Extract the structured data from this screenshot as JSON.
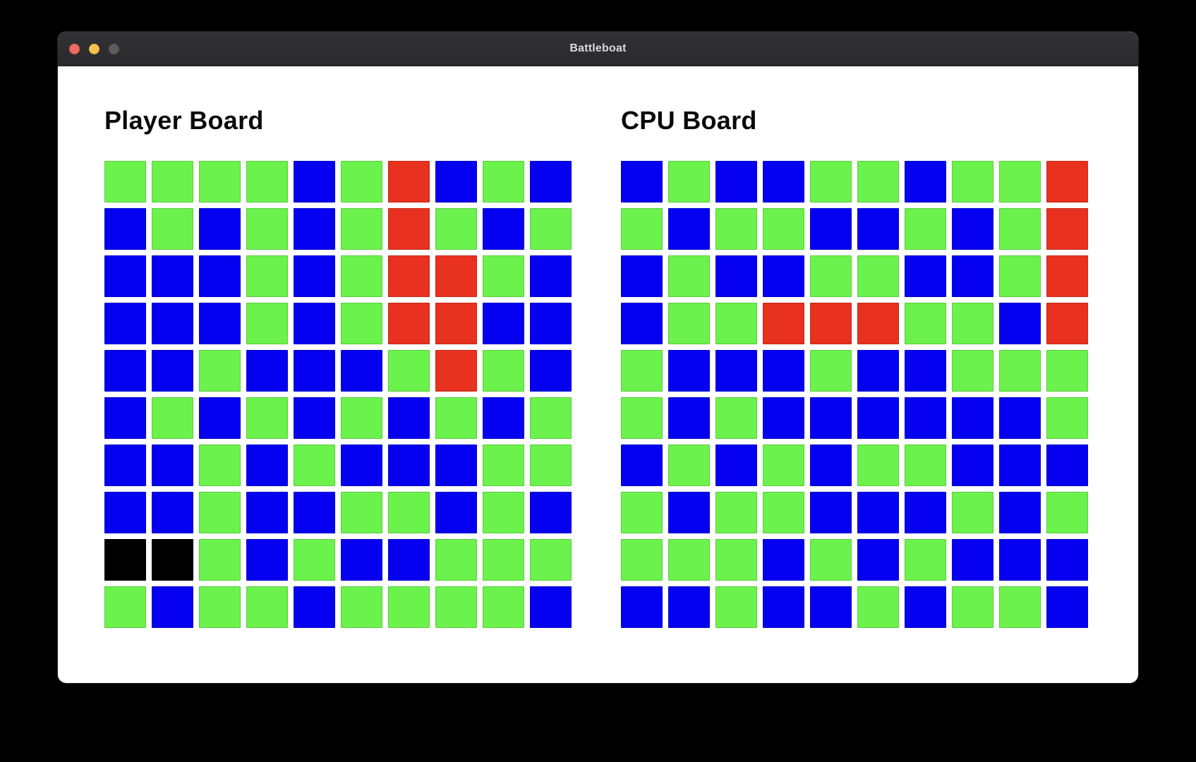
{
  "window": {
    "title": "Battleboat",
    "traffic_lights": [
      {
        "name": "close-button",
        "color": "#ed6a5f",
        "interactable": true
      },
      {
        "name": "minimize-button",
        "color": "#f5bf4f",
        "interactable": true
      },
      {
        "name": "zoom-button",
        "color": "#5d5d60",
        "interactable": true
      }
    ]
  },
  "colors": {
    "G": "#6cf24c",
    "B": "#0500f0",
    "R": "#e8311f",
    "K": "#000000"
  },
  "color_meanings": {
    "G": "green-cell",
    "B": "blue-cell",
    "R": "red-cell",
    "K": "black-cell"
  },
  "boards": [
    {
      "id": "player-board",
      "title": "Player Board",
      "cells_interactable": false,
      "rows": [
        [
          "G",
          "G",
          "G",
          "G",
          "B",
          "G",
          "R",
          "B",
          "G",
          "B"
        ],
        [
          "B",
          "G",
          "B",
          "G",
          "B",
          "G",
          "R",
          "G",
          "B",
          "G"
        ],
        [
          "B",
          "B",
          "B",
          "G",
          "B",
          "G",
          "R",
          "R",
          "G",
          "B"
        ],
        [
          "B",
          "B",
          "B",
          "G",
          "B",
          "G",
          "R",
          "R",
          "B",
          "B"
        ],
        [
          "B",
          "B",
          "G",
          "B",
          "B",
          "B",
          "G",
          "R",
          "G",
          "B"
        ],
        [
          "B",
          "G",
          "B",
          "G",
          "B",
          "G",
          "B",
          "G",
          "B",
          "G"
        ],
        [
          "B",
          "B",
          "G",
          "B",
          "G",
          "B",
          "B",
          "B",
          "G",
          "G"
        ],
        [
          "B",
          "B",
          "G",
          "B",
          "B",
          "G",
          "G",
          "B",
          "G",
          "B"
        ],
        [
          "K",
          "K",
          "G",
          "B",
          "G",
          "B",
          "B",
          "G",
          "G",
          "G"
        ],
        [
          "G",
          "B",
          "G",
          "G",
          "B",
          "G",
          "G",
          "G",
          "G",
          "B"
        ]
      ]
    },
    {
      "id": "cpu-board",
      "title": "CPU Board",
      "cells_interactable": true,
      "rows": [
        [
          "B",
          "G",
          "B",
          "B",
          "G",
          "G",
          "B",
          "G",
          "G",
          "R"
        ],
        [
          "G",
          "B",
          "G",
          "G",
          "B",
          "B",
          "G",
          "B",
          "G",
          "R"
        ],
        [
          "B",
          "G",
          "B",
          "B",
          "G",
          "G",
          "B",
          "B",
          "G",
          "R"
        ],
        [
          "B",
          "G",
          "G",
          "R",
          "R",
          "R",
          "G",
          "G",
          "B",
          "R"
        ],
        [
          "G",
          "B",
          "B",
          "B",
          "G",
          "B",
          "B",
          "G",
          "G",
          "G"
        ],
        [
          "G",
          "B",
          "G",
          "B",
          "B",
          "B",
          "B",
          "B",
          "B",
          "G"
        ],
        [
          "B",
          "G",
          "B",
          "G",
          "B",
          "G",
          "G",
          "B",
          "B",
          "B"
        ],
        [
          "G",
          "B",
          "G",
          "G",
          "B",
          "B",
          "B",
          "G",
          "B",
          "G"
        ],
        [
          "G",
          "G",
          "G",
          "B",
          "G",
          "B",
          "G",
          "B",
          "B",
          "B"
        ],
        [
          "B",
          "B",
          "G",
          "B",
          "B",
          "G",
          "B",
          "G",
          "G",
          "B"
        ]
      ]
    }
  ]
}
